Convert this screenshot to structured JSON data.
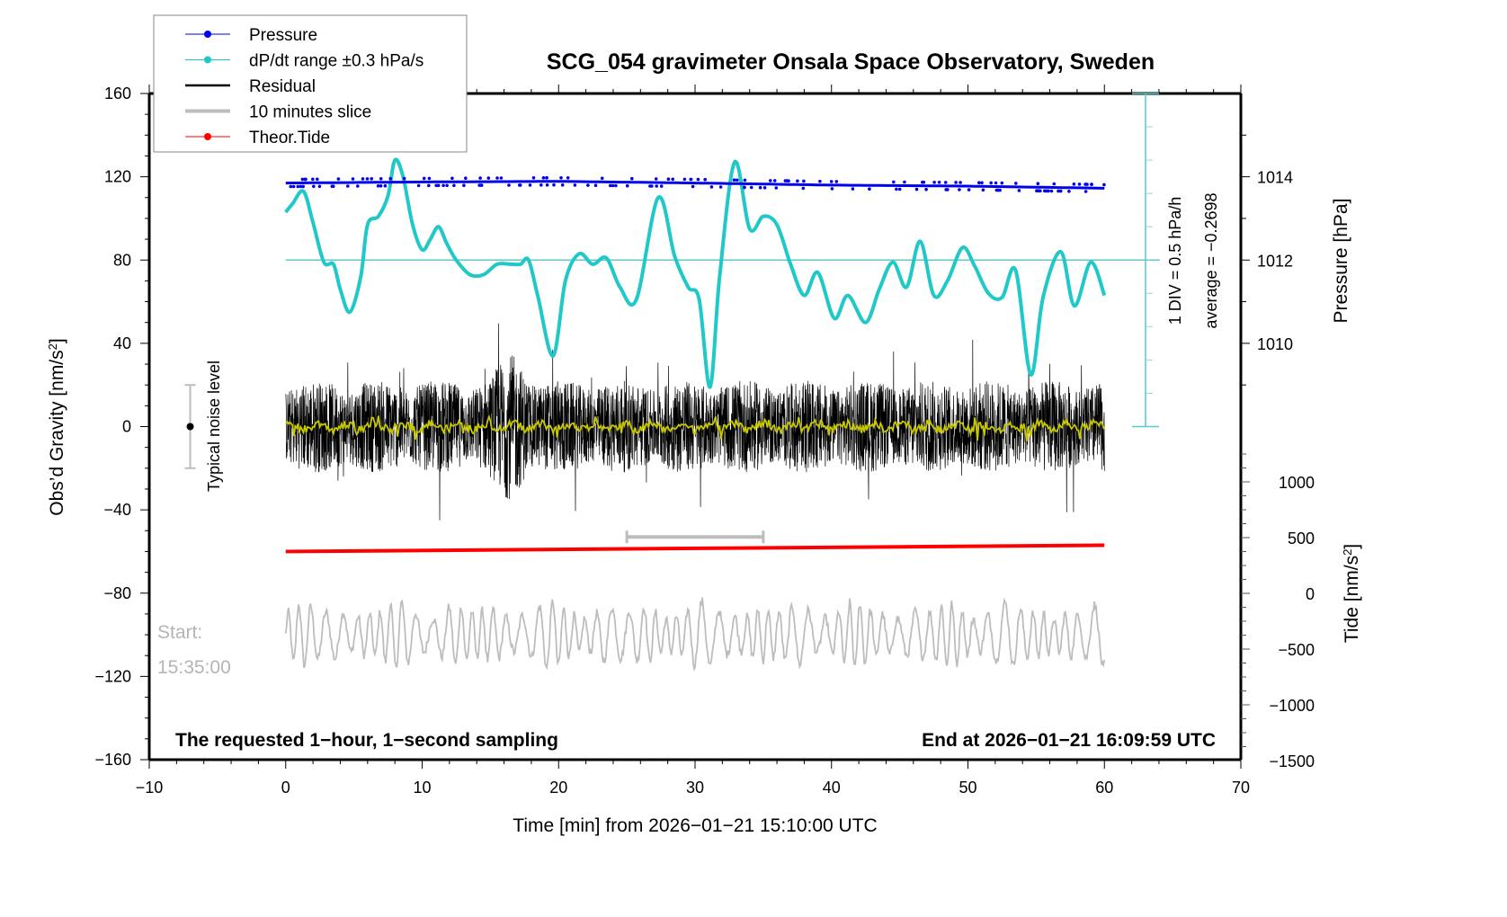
{
  "chart_data": {
    "type": "line",
    "title": "SCG_054 gravimeter Onsala Space Observatory, Sweden",
    "xlabel": "Time [min] from 2026−01−21 15:10:00 UTC",
    "ylabel": "Obs’d Gravity [nm/s²]",
    "ylabel_base": "Obs’d Gravity [nm/s",
    "ylabel_sup": "2",
    "ylabel_close": "]",
    "xlim": [
      -10,
      70
    ],
    "ylim": [
      -160,
      160
    ],
    "xticks": [
      -10,
      0,
      10,
      20,
      30,
      40,
      50,
      60,
      70
    ],
    "xtick_labels": [
      "−10",
      "0",
      "10",
      "20",
      "30",
      "40",
      "50",
      "60",
      "70"
    ],
    "yticks": [
      160,
      120,
      80,
      40,
      0,
      -40,
      -80,
      -120,
      -160
    ],
    "ytick_labels": [
      "160",
      "120",
      "80",
      "40",
      "0",
      "−40",
      "−80",
      "−120",
      "−160"
    ],
    "pressure_axis": {
      "label": "Pressure [hPa]",
      "ticks": [
        1014,
        1012,
        1010
      ],
      "tick_labels": [
        "1014",
        "1012",
        "1010"
      ],
      "gravity_equiv": [
        120,
        80,
        40
      ]
    },
    "tide_axis": {
      "label_base": "Tide [nm/s",
      "label_sup": "2",
      "label_close": "]",
      "ticks": [
        1000,
        500,
        0,
        -500,
        -1000,
        -1500
      ],
      "tick_labels": [
        "1000",
        "500",
        "0",
        "−500",
        "−1000",
        "−1500"
      ],
      "range": [
        -1500,
        1500
      ]
    },
    "legend": {
      "placement": "top-left",
      "entries": [
        {
          "label": "Pressure",
          "color": "#0000ee",
          "style": "line-dot"
        },
        {
          "label": "dP/dt range ±0.3 hPa/s",
          "color": "#20c8c8",
          "style": "line-dot"
        },
        {
          "label": "Residual",
          "color": "#000000",
          "style": "line"
        },
        {
          "label": "10 minutes slice",
          "color": "#bdbdbd",
          "style": "thick-line"
        },
        {
          "label": "Theor.Tide",
          "color": "#ff0000",
          "style": "line-dot"
        }
      ]
    },
    "annotations": {
      "dpdt_div": "1 DIV = 0.5 hPa/h",
      "dpdt_average": "average = −0.2698",
      "noise_label": "Typical noise level",
      "noise_bar": {
        "center": 0,
        "low": -20,
        "high": 20,
        "x": -7
      },
      "start_label": "Start:",
      "start_time": "15:35:00",
      "bottom_left": "The requested 1−hour, 1−second sampling",
      "bottom_right": "End at 2026−01−21 16:09:59 UTC",
      "slice_marker": {
        "from": 25,
        "to": 35,
        "y": -53
      }
    },
    "series": [
      {
        "name": "Pressure",
        "color": "#0000ee",
        "unit": "gravity-axis",
        "x": [
          0,
          10,
          20,
          30,
          40,
          50,
          60
        ],
        "values": [
          117,
          117.5,
          117.8,
          117,
          116,
          115.5,
          114.5
        ]
      },
      {
        "name": "dP/dt",
        "color": "#20c8c8",
        "reference_line": 80,
        "x": [
          0,
          0.5,
          1.3,
          2,
          2.8,
          3.5,
          4,
          4.7,
          5.5,
          6,
          6.8,
          7.5,
          8,
          8.6,
          9.3,
          10,
          10.6,
          11.2,
          11.8,
          12.5,
          13.5,
          14.5,
          15.5,
          16.5,
          17.2,
          17.8,
          18.5,
          19.6,
          20.5,
          21.5,
          22.5,
          23.5,
          24.5,
          25.7,
          27.3,
          28.5,
          29.5,
          30.3,
          31.1,
          31.8,
          32.9,
          34,
          35,
          36,
          37,
          38,
          39,
          40.2,
          41.2,
          42.5,
          43.5,
          44.5,
          45.5,
          46.5,
          47.5,
          48.5,
          49.6,
          50.5,
          51.5,
          52.5,
          53.5,
          54.6,
          55.5,
          56.8,
          57.8,
          59,
          60
        ],
        "values": [
          103,
          107,
          113,
          98,
          79,
          78,
          66,
          55,
          72,
          97,
          101,
          111,
          128,
          120,
          97,
          85,
          90,
          96,
          88,
          80,
          73,
          73,
          78,
          78,
          78,
          80,
          62,
          34,
          70,
          83,
          78,
          81,
          67,
          61,
          110,
          82,
          67,
          61,
          19,
          72,
          127,
          95,
          101,
          97,
          78,
          63,
          74,
          52,
          63,
          50,
          66,
          79,
          67,
          89,
          63,
          70,
          86,
          77,
          64,
          62,
          75,
          25,
          62,
          84,
          58,
          79,
          63
        ]
      },
      {
        "name": "Residual",
        "color": "#000000",
        "x_range": [
          0,
          60
        ],
        "sampling": "1 s",
        "envelope": [
          -60,
          67
        ],
        "typical_amplitude": 20,
        "smoothed_color": "#c8c800"
      },
      {
        "name": "Theor.Tide",
        "color": "#ff0000",
        "x": [
          0,
          60
        ],
        "values": [
          -60,
          -57
        ]
      },
      {
        "name": "10 minutes slice",
        "color": "#bdbdbd",
        "x_range": [
          0,
          60
        ],
        "baseline": -100,
        "envelope": [
          -141,
          -57
        ]
      }
    ]
  }
}
